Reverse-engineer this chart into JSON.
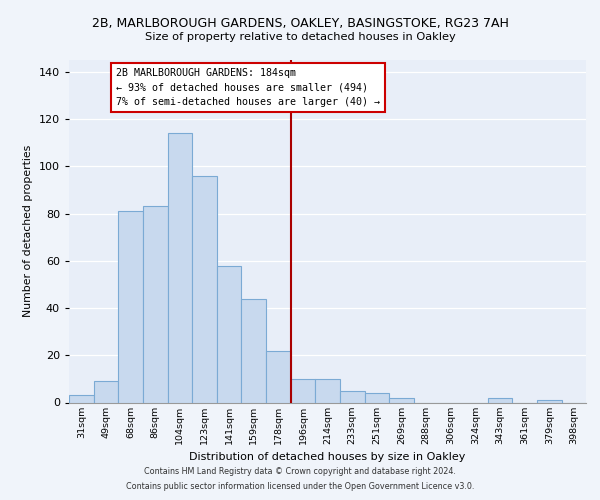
{
  "title_line1": "2B, MARLBOROUGH GARDENS, OAKLEY, BASINGSTOKE, RG23 7AH",
  "title_line2": "Size of property relative to detached houses in Oakley",
  "xlabel": "Distribution of detached houses by size in Oakley",
  "ylabel": "Number of detached properties",
  "bar_labels": [
    "31sqm",
    "49sqm",
    "68sqm",
    "86sqm",
    "104sqm",
    "123sqm",
    "141sqm",
    "159sqm",
    "178sqm",
    "196sqm",
    "214sqm",
    "233sqm",
    "251sqm",
    "269sqm",
    "288sqm",
    "306sqm",
    "324sqm",
    "343sqm",
    "361sqm",
    "379sqm",
    "398sqm"
  ],
  "bar_values": [
    3,
    9,
    81,
    83,
    114,
    96,
    58,
    44,
    22,
    10,
    10,
    5,
    4,
    2,
    0,
    0,
    0,
    2,
    0,
    1,
    0
  ],
  "bar_color": "#c8d9ee",
  "bar_edge_color": "#7baad4",
  "vline_x": 8.5,
  "vline_color": "#aa0000",
  "annotation_text_line1": "2B MARLBOROUGH GARDENS: 184sqm",
  "annotation_text_line2": "← 93% of detached houses are smaller (494)",
  "annotation_text_line3": "7% of semi-detached houses are larger (40) →",
  "ann_box_color": "#cc0000",
  "ylim": [
    0,
    145
  ],
  "yticks": [
    0,
    20,
    40,
    60,
    80,
    100,
    120,
    140
  ],
  "footer_line1": "Contains HM Land Registry data © Crown copyright and database right 2024.",
  "footer_line2": "Contains public sector information licensed under the Open Government Licence v3.0.",
  "background_color": "#f0f4fa",
  "plot_bg_color": "#e8eef8",
  "grid_color": "#ffffff"
}
